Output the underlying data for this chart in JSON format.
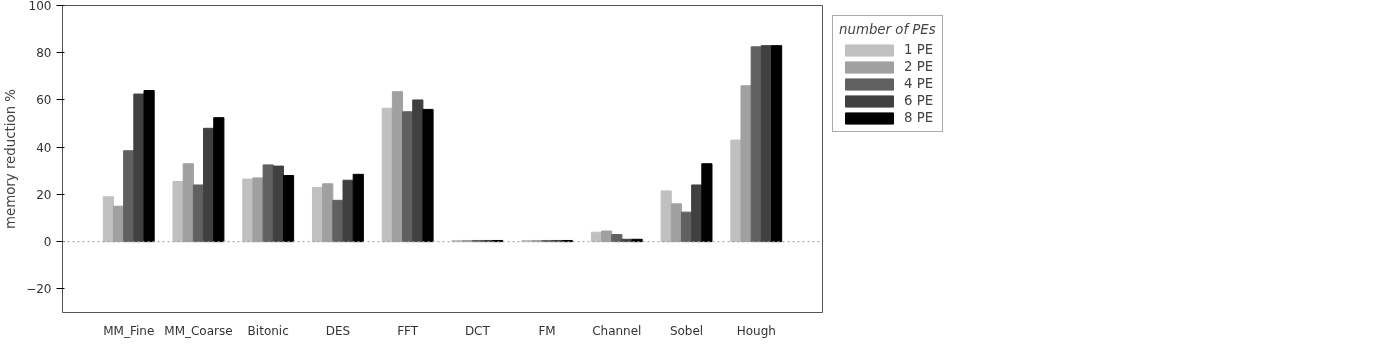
{
  "chart_data": {
    "type": "bar",
    "ylabel": "memory reduction %",
    "legend_title": "number of PEs",
    "categories": [
      "MM_Fine",
      "MM_Coarse",
      "Bitonic",
      "DES",
      "FFT",
      "DCT",
      "FM",
      "Channel",
      "Sobel",
      "Hough"
    ],
    "series": [
      {
        "name": "1 PE",
        "color": "#c0c0c0",
        "values": [
          19,
          25.5,
          26.5,
          23,
          56.5,
          0.5,
          0.5,
          4,
          21.5,
          43
        ]
      },
      {
        "name": "2 PE",
        "color": "#a0a0a0",
        "values": [
          15,
          33,
          27,
          24.5,
          63.5,
          0.5,
          0.5,
          4.5,
          16,
          66
        ]
      },
      {
        "name": "4 PE",
        "color": "#606060",
        "values": [
          38.5,
          24,
          32.5,
          17.5,
          55,
          0.5,
          0.5,
          3,
          12.5,
          82.5
        ]
      },
      {
        "name": "6 PE",
        "color": "#404040",
        "values": [
          62.5,
          48,
          32,
          26,
          60,
          0.5,
          0.5,
          1,
          24,
          83
        ]
      },
      {
        "name": "8 PE",
        "color": "#000000",
        "values": [
          64,
          52.5,
          28,
          28.5,
          56,
          0.5,
          0.5,
          1,
          33,
          83
        ]
      }
    ],
    "ylim": [
      -30,
      100
    ],
    "yticks": [
      -20,
      0,
      20,
      40,
      60,
      80,
      100
    ],
    "grid": false,
    "legend": "right",
    "ref_lines": [
      {
        "axis": "y",
        "value": 0,
        "color": "#999999",
        "line_style": "dotted"
      }
    ]
  }
}
